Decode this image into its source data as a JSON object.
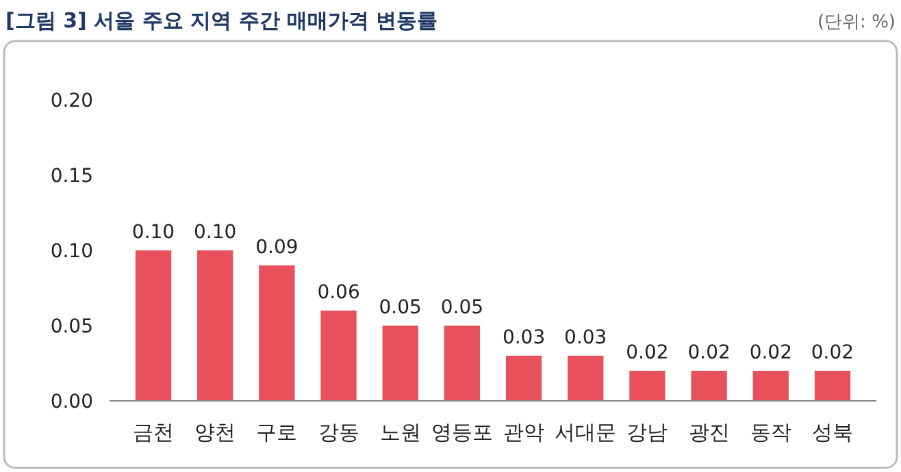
{
  "chart_data": {
    "type": "bar",
    "title": "[그림 3] 서울 주요 지역 주간 매매가격 변동률",
    "subtitle": "(단위: %)",
    "categories": [
      "금천",
      "양천",
      "구로",
      "강동",
      "노원",
      "영등포",
      "관악",
      "서대문",
      "강남",
      "광진",
      "동작",
      "성북"
    ],
    "values": [
      0.1,
      0.1,
      0.09,
      0.06,
      0.05,
      0.05,
      0.03,
      0.03,
      0.02,
      0.02,
      0.02,
      0.02
    ],
    "value_labels": [
      "0.10",
      "0.10",
      "0.09",
      "0.06",
      "0.05",
      "0.05",
      "0.03",
      "0.03",
      "0.02",
      "0.02",
      "0.02",
      "0.02"
    ],
    "color": "#e8505b",
    "ylim": [
      0,
      0.2
    ],
    "yticks": [
      {
        "value": 0,
        "label": "0.00"
      },
      {
        "value": 0.05,
        "label": "0.05"
      },
      {
        "value": 0.1,
        "label": "0.10"
      },
      {
        "value": 0.15,
        "label": "0.15"
      },
      {
        "value": 0.2,
        "label": "0.20"
      }
    ],
    "grid": false
  }
}
